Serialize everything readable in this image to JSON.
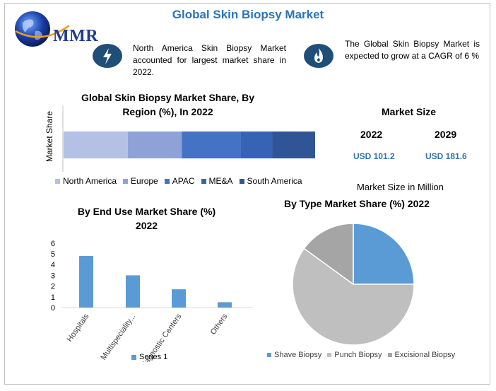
{
  "page_title": "Global Skin Biopsy Market",
  "logo": {
    "text": "MMR"
  },
  "info_cards": [
    {
      "icon": "lightning-icon",
      "text": "North America Skin Biopsy Market accounted for largest market share in 2022."
    },
    {
      "icon": "flame-icon",
      "text": "The Global Skin Biopsy Market is expected to grow at a CAGR of 6 %"
    }
  ],
  "market_size": {
    "title": "Market Size",
    "years": [
      "2022",
      "2029"
    ],
    "values": [
      "USD 101.2",
      "USD 181.6"
    ],
    "note": "Market Size in Million"
  },
  "colors": {
    "north_america": "#b4c1e4",
    "europe": "#8ea2d8",
    "apac": "#4472c4",
    "mea": "#3763b4",
    "south_america": "#2f5597",
    "end_use_bar": "#5b9bd5",
    "shave": "#5b9bd5",
    "punch": "#bfbfbf",
    "excisional": "#a5a5a5"
  },
  "chart_data": [
    {
      "type": "bar",
      "orientation": "horizontal-stacked",
      "title": "Global Skin Biopsy  Market Share, By Region (%), In 2022",
      "ylabel": "Market Share",
      "series": [
        {
          "name": "North America",
          "values": [
            25.5
          ]
        },
        {
          "name": "Europe",
          "values": [
            21.5
          ]
        },
        {
          "name": "APAC",
          "values": [
            23.5
          ]
        },
        {
          "name": "ME&A",
          "values": [
            12.5
          ]
        },
        {
          "name": "South America",
          "values": [
            17
          ]
        }
      ],
      "legend": "bottom"
    },
    {
      "type": "bar",
      "title": "By End Use Market Share (%) 2022",
      "categories": [
        "Hospitals",
        "Multispeciality...",
        "Diagnostic Centers",
        "Others"
      ],
      "series": [
        {
          "name": "Series 1",
          "values": [
            4.8,
            3.0,
            1.7,
            0.5
          ]
        }
      ],
      "yticks": [
        "0",
        "1",
        "2",
        "3",
        "4",
        "5",
        "6"
      ],
      "ylim": [
        0,
        6
      ],
      "legend": "bottom"
    },
    {
      "type": "pie",
      "title": "By Type Market Share (%) 2022",
      "slices": [
        {
          "name": "Shave Biopsy",
          "value": 25
        },
        {
          "name": "Punch Biopsy",
          "value": 60
        },
        {
          "name": "Excisional Biopsy",
          "value": 15
        }
      ],
      "legend": "bottom"
    }
  ]
}
